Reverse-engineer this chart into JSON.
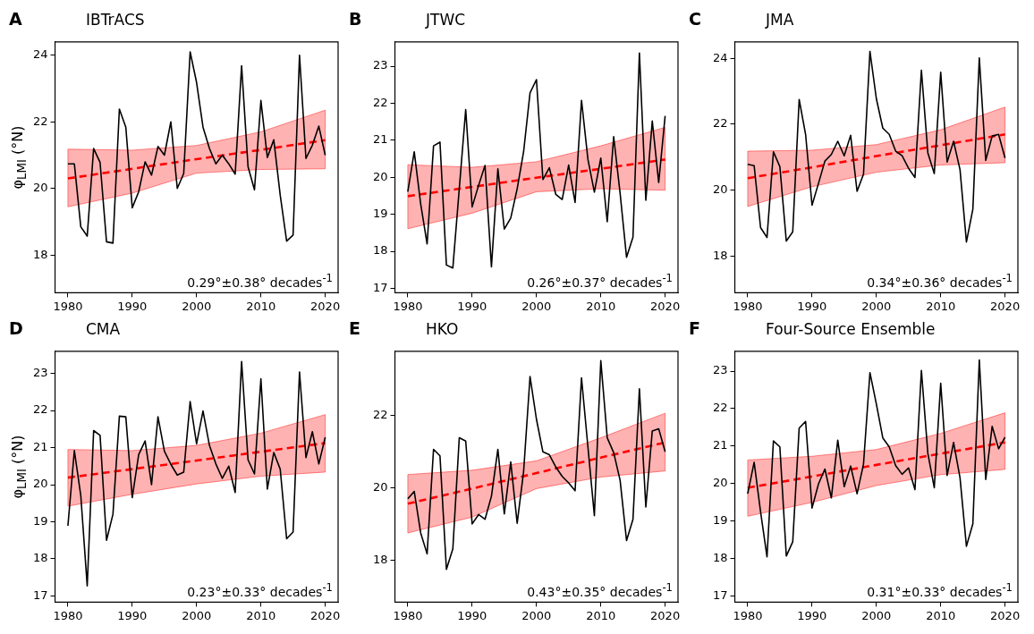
{
  "chart_data": [
    {
      "type": "line",
      "title": "A",
      "subtitle": "IBTrACS",
      "ylabel": "φ$_{LMI}$ (°N)",
      "x": [
        1980,
        1981,
        1982,
        1983,
        1984,
        1985,
        1986,
        1987,
        1988,
        1989,
        1990,
        1991,
        1992,
        1993,
        1994,
        1995,
        1996,
        1997,
        1998,
        1999,
        2000,
        2001,
        2002,
        2003,
        2004,
        2005,
        2006,
        2007,
        2008,
        2009,
        2010,
        2011,
        2012,
        2013,
        2014,
        2015,
        2016,
        2017,
        2018,
        2019,
        2020
      ],
      "xlim": [
        1978,
        2022
      ],
      "xticks": [
        1980,
        1990,
        2000,
        2010,
        2020
      ],
      "ylim": [
        16.87,
        24.4
      ],
      "yticks": [
        18,
        20,
        22,
        24
      ],
      "series": [
        {
          "color": "#000000",
          "values": [
            20.74,
            20.74,
            18.85,
            18.57,
            21.2,
            20.78,
            18.4,
            18.36,
            22.38,
            21.84,
            19.42,
            19.9,
            20.8,
            20.4,
            21.26,
            21.0,
            22.0,
            20.0,
            20.45,
            24.1,
            23.18,
            21.84,
            21.2,
            20.74,
            21.0,
            20.74,
            20.43,
            23.68,
            20.65,
            19.96,
            22.64,
            20.93,
            21.46,
            19.8,
            18.42,
            18.6,
            24.0,
            20.9,
            21.3,
            21.87,
            21.0
          ]
        },
        {
          "type": "line",
          "color": "#ff0000",
          "line_style": "dashed",
          "x": [
            1980,
            1990,
            2000,
            2010,
            2020
          ],
          "values": [
            20.3,
            20.59,
            20.88,
            21.16,
            21.45
          ],
          "lower": [
            19.45,
            19.86,
            20.46,
            20.57,
            20.59
          ],
          "upper": [
            21.18,
            21.15,
            21.29,
            21.7,
            22.35
          ]
        }
      ],
      "annotations": [
        "0.29°±0.38° decades$^{-1}$"
      ]
    },
    {
      "type": "line",
      "title": "B",
      "subtitle": "JTWC",
      "x": [
        1980,
        1981,
        1982,
        1983,
        1984,
        1985,
        1986,
        1987,
        1988,
        1989,
        1990,
        1991,
        1992,
        1993,
        1994,
        1995,
        1996,
        1997,
        1998,
        1999,
        2000,
        2001,
        2002,
        2003,
        2004,
        2005,
        2006,
        2007,
        2008,
        2009,
        2010,
        2011,
        2012,
        2013,
        2014,
        2015,
        2016,
        2017,
        2018,
        2019,
        2020
      ],
      "xlim": [
        1978,
        2022
      ],
      "xticks": [
        1980,
        1990,
        2000,
        2010,
        2020
      ],
      "ylim": [
        16.88,
        23.66
      ],
      "yticks": [
        17,
        18,
        19,
        20,
        21,
        22,
        23
      ],
      "series": [
        {
          "color": "#000000",
          "values": [
            19.61,
            20.69,
            19.28,
            18.2,
            20.85,
            20.95,
            17.63,
            17.55,
            19.69,
            21.83,
            19.2,
            19.78,
            20.32,
            17.58,
            20.23,
            18.6,
            18.9,
            19.69,
            20.69,
            22.28,
            22.64,
            19.94,
            20.26,
            19.54,
            19.4,
            20.33,
            19.32,
            22.08,
            20.48,
            19.6,
            20.52,
            18.8,
            21.1,
            19.57,
            17.84,
            18.38,
            23.36,
            19.38,
            21.52,
            19.86,
            21.66
          ]
        },
        {
          "type": "line",
          "color": "#ff0000",
          "line_style": "dashed",
          "x": [
            1980,
            1990,
            2000,
            2010,
            2020
          ],
          "values": [
            19.49,
            19.74,
            19.99,
            20.23,
            20.48
          ],
          "lower": [
            18.61,
            19.03,
            19.61,
            19.69,
            19.65
          ],
          "upper": [
            20.34,
            20.27,
            20.42,
            20.85,
            21.35
          ]
        }
      ],
      "annotations": [
        "0.26°±0.37° decades$^{-1}$"
      ]
    },
    {
      "type": "line",
      "title": "C",
      "subtitle": "JMA",
      "x": [
        1980,
        1981,
        1982,
        1983,
        1984,
        1985,
        1986,
        1987,
        1988,
        1989,
        1990,
        1991,
        1992,
        1993,
        1994,
        1995,
        1996,
        1997,
        1998,
        1999,
        2000,
        2001,
        2002,
        2003,
        2004,
        2005,
        2006,
        2007,
        2008,
        2009,
        2010,
        2011,
        2012,
        2013,
        2014,
        2015,
        2016,
        2017,
        2018,
        2019,
        2020
      ],
      "xlim": [
        1978,
        2022
      ],
      "xticks": [
        1980,
        1990,
        2000,
        2010,
        2020
      ],
      "ylim": [
        16.88,
        24.5
      ],
      "yticks": [
        18,
        20,
        22,
        24
      ],
      "series": [
        {
          "color": "#000000",
          "values": [
            20.78,
            20.74,
            18.86,
            18.56,
            21.16,
            20.71,
            18.45,
            18.73,
            22.75,
            21.69,
            19.54,
            20.2,
            20.88,
            21.08,
            21.48,
            21.04,
            21.66,
            19.96,
            20.48,
            24.21,
            22.77,
            21.88,
            21.69,
            21.18,
            21.04,
            20.66,
            20.38,
            23.64,
            21.13,
            20.5,
            23.58,
            20.85,
            21.48,
            20.62,
            18.42,
            19.42,
            24.01,
            20.9,
            21.64,
            21.69,
            20.97
          ]
        },
        {
          "type": "line",
          "color": "#ff0000",
          "line_style": "dashed",
          "x": [
            1980,
            1990,
            2000,
            2010,
            2020
          ],
          "values": [
            20.36,
            20.69,
            21.03,
            21.36,
            21.69
          ],
          "lower": [
            19.5,
            20.1,
            20.54,
            20.76,
            20.83
          ],
          "upper": [
            21.18,
            21.21,
            21.38,
            21.83,
            22.52
          ]
        }
      ],
      "annotations": [
        "0.34°±0.36° decades$^{-1}$"
      ]
    },
    {
      "type": "line",
      "title": "D",
      "subtitle": "CMA",
      "ylabel": "φ$_{LMI}$ (°N)",
      "x": [
        1980,
        1981,
        1982,
        1983,
        1984,
        1985,
        1986,
        1987,
        1988,
        1989,
        1990,
        1991,
        1992,
        1993,
        1994,
        1995,
        1996,
        1997,
        1998,
        1999,
        2000,
        2001,
        2002,
        2003,
        2004,
        2005,
        2006,
        2007,
        2008,
        2009,
        2010,
        2011,
        2012,
        2013,
        2014,
        2015,
        2016,
        2017,
        2018,
        2019,
        2020
      ],
      "xlim": [
        1978,
        2022
      ],
      "xticks": [
        1980,
        1990,
        2000,
        2010,
        2020
      ],
      "ylim": [
        16.83,
        23.6
      ],
      "yticks": [
        17,
        18,
        19,
        20,
        21,
        22,
        23
      ],
      "series": [
        {
          "color": "#000000",
          "values": [
            18.89,
            20.92,
            19.71,
            17.27,
            21.46,
            21.33,
            18.5,
            19.2,
            21.85,
            21.83,
            19.65,
            20.81,
            21.18,
            20.0,
            21.83,
            20.9,
            20.55,
            20.26,
            20.34,
            22.24,
            21.1,
            21.99,
            21.06,
            20.56,
            20.17,
            20.5,
            19.79,
            23.32,
            20.67,
            20.29,
            22.86,
            19.88,
            20.87,
            20.42,
            18.54,
            18.72,
            23.04,
            20.73,
            21.43,
            20.56,
            21.28
          ]
        },
        {
          "type": "line",
          "color": "#ff0000",
          "line_style": "dashed",
          "x": [
            1980,
            1990,
            2000,
            2010,
            2020
          ],
          "values": [
            20.19,
            20.42,
            20.65,
            20.89,
            21.12
          ],
          "lower": [
            19.42,
            19.74,
            20.02,
            20.23,
            20.34
          ],
          "upper": [
            20.95,
            20.92,
            21.06,
            21.39,
            21.89
          ]
        }
      ],
      "annotations": [
        "0.23°±0.33° decades$^{-1}$"
      ]
    },
    {
      "type": "line",
      "title": "E",
      "subtitle": "HKO",
      "x": [
        1980,
        1981,
        1982,
        1983,
        1984,
        1985,
        1986,
        1987,
        1988,
        1989,
        1990,
        1991,
        1992,
        1993,
        1994,
        1995,
        1996,
        1997,
        1998,
        1999,
        2000,
        2001,
        2002,
        2003,
        2004,
        2005,
        2006,
        2007,
        2008,
        2009,
        2010,
        2011,
        2012,
        2013,
        2014,
        2015,
        2016,
        2017,
        2018,
        2019,
        2020
      ],
      "xlim": [
        1978,
        2022
      ],
      "xticks": [
        1980,
        1990,
        2000,
        2010,
        2020
      ],
      "ylim": [
        16.83,
        23.79
      ],
      "yticks": [
        18,
        20,
        22
      ],
      "series": [
        {
          "color": "#000000",
          "values": [
            19.7,
            19.9,
            18.75,
            18.17,
            21.07,
            20.89,
            17.74,
            18.31,
            21.39,
            21.3,
            19.0,
            19.26,
            19.13,
            19.77,
            21.07,
            19.28,
            20.72,
            19.02,
            20.45,
            23.09,
            21.9,
            21.0,
            20.92,
            20.58,
            20.32,
            20.14,
            19.92,
            23.05,
            21.13,
            19.23,
            23.53,
            21.39,
            20.98,
            20.21,
            18.54,
            19.13,
            22.75,
            19.47,
            21.58,
            21.64,
            21.0
          ]
        },
        {
          "type": "line",
          "color": "#ff0000",
          "line_style": "dashed",
          "x": [
            1980,
            1990,
            2000,
            2010,
            2020
          ],
          "values": [
            19.56,
            19.98,
            20.41,
            20.84,
            21.26
          ],
          "lower": [
            18.75,
            19.19,
            19.98,
            20.3,
            20.47
          ],
          "upper": [
            20.37,
            20.49,
            20.75,
            21.39,
            22.07
          ]
        }
      ],
      "annotations": [
        "0.43°±0.35° decades$^{-1}$"
      ]
    },
    {
      "type": "line",
      "title": "F",
      "subtitle": "Four-Source Ensemble",
      "x": [
        1980,
        1981,
        1982,
        1983,
        1984,
        1985,
        1986,
        1987,
        1988,
        1989,
        1990,
        1991,
        1992,
        1993,
        1994,
        1995,
        1996,
        1997,
        1998,
        1999,
        2000,
        2001,
        2002,
        2003,
        2004,
        2005,
        2006,
        2007,
        2008,
        2009,
        2010,
        2011,
        2012,
        2013,
        2014,
        2015,
        2016,
        2017,
        2018,
        2019,
        2020
      ],
      "xlim": [
        1978,
        2022
      ],
      "xticks": [
        1980,
        1990,
        2000,
        2010,
        2020
      ],
      "ylim": [
        16.84,
        23.53
      ],
      "yticks": [
        17,
        18,
        19,
        20,
        21,
        22,
        23
      ],
      "series": [
        {
          "color": "#000000",
          "values": [
            19.73,
            20.57,
            19.25,
            18.05,
            21.14,
            20.98,
            18.07,
            18.45,
            21.48,
            21.66,
            19.35,
            19.99,
            20.39,
            19.62,
            21.16,
            19.92,
            20.47,
            19.73,
            20.52,
            22.96,
            22.12,
            21.22,
            20.98,
            20.48,
            20.25,
            20.42,
            19.84,
            23.02,
            20.81,
            19.89,
            22.68,
            20.22,
            21.1,
            20.16,
            18.33,
            18.93,
            23.3,
            20.11,
            21.53,
            20.93,
            21.24
          ]
        },
        {
          "type": "line",
          "color": "#ff0000",
          "line_style": "dashed",
          "x": [
            1980,
            1990,
            2000,
            2010,
            2020
          ],
          "values": [
            19.89,
            20.19,
            20.5,
            20.8,
            21.1
          ],
          "lower": [
            19.13,
            19.5,
            19.95,
            20.24,
            20.38
          ],
          "upper": [
            20.63,
            20.73,
            20.91,
            21.34,
            21.89
          ]
        }
      ],
      "annotations": [
        "0.31°±0.33° decades$^{-1}$"
      ]
    }
  ]
}
